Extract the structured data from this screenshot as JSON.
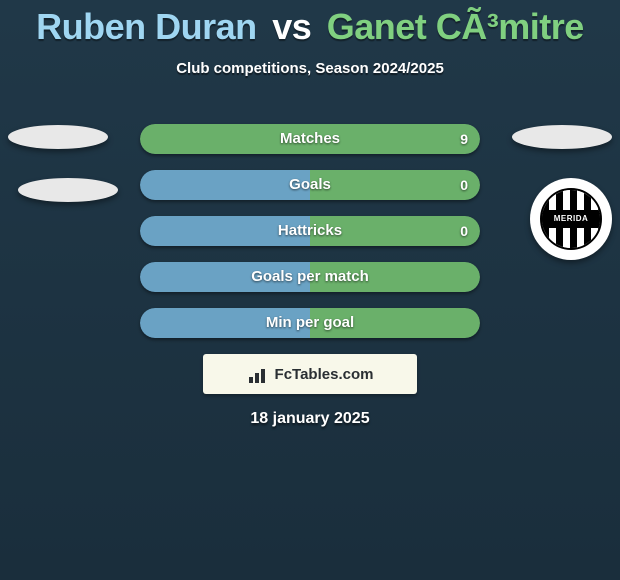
{
  "title": {
    "player1": "Ruben Duran",
    "vs": "vs",
    "player2": "Ganet CÃ³mitre",
    "p1_color": "#9fd6f2",
    "vs_color": "#ffffff",
    "p2_color": "#80d080"
  },
  "subtitle": "Club competitions, Season 2024/2025",
  "stats": {
    "bar_color_left": "#6aa2c4",
    "bar_color_right": "#6ab06a",
    "neutral_color": "#6aa2c4",
    "rows": [
      {
        "label": "Matches",
        "left": "",
        "right": "9",
        "left_pct": 0,
        "right_pct": 100
      },
      {
        "label": "Goals",
        "left": "",
        "right": "0",
        "left_pct": 50,
        "right_pct": 50
      },
      {
        "label": "Hattricks",
        "left": "",
        "right": "0",
        "left_pct": 50,
        "right_pct": 50
      },
      {
        "label": "Goals per match",
        "left": "",
        "right": "",
        "left_pct": 50,
        "right_pct": 50
      },
      {
        "label": "Min per goal",
        "left": "",
        "right": "",
        "left_pct": 50,
        "right_pct": 50
      }
    ]
  },
  "badge_text": "MERIDA",
  "logo_text": "FcTables.com",
  "date": "18 january 2025"
}
